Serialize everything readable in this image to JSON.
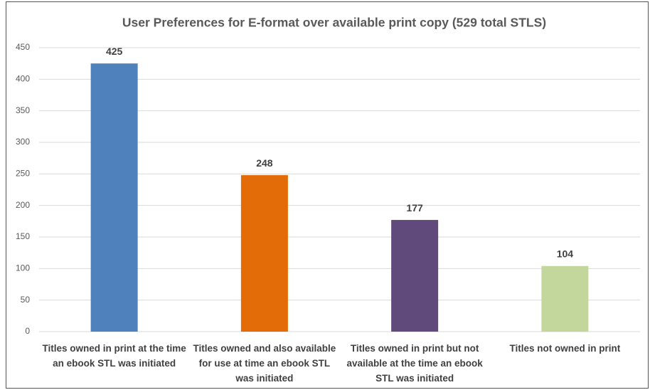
{
  "chart_data": {
    "type": "bar",
    "title": "User Preferences for E-format over available print copy (529 total STLS)",
    "categories": [
      "Titles owned in print at the time an ebook STL was initiated",
      "Titles owned and also available for use at time an ebook STL was initiated",
      "Titles owned in print but not available at the time an ebook STL was initiated",
      "Titles not owned in print"
    ],
    "values": [
      425,
      248,
      177,
      104
    ],
    "colors": [
      "#4f81bd",
      "#e36c09",
      "#604a7b",
      "#c3d69b"
    ],
    "ylim": [
      0,
      450
    ],
    "yticks": [
      0,
      50,
      100,
      150,
      200,
      250,
      300,
      350,
      400,
      450
    ],
    "grid": true
  }
}
